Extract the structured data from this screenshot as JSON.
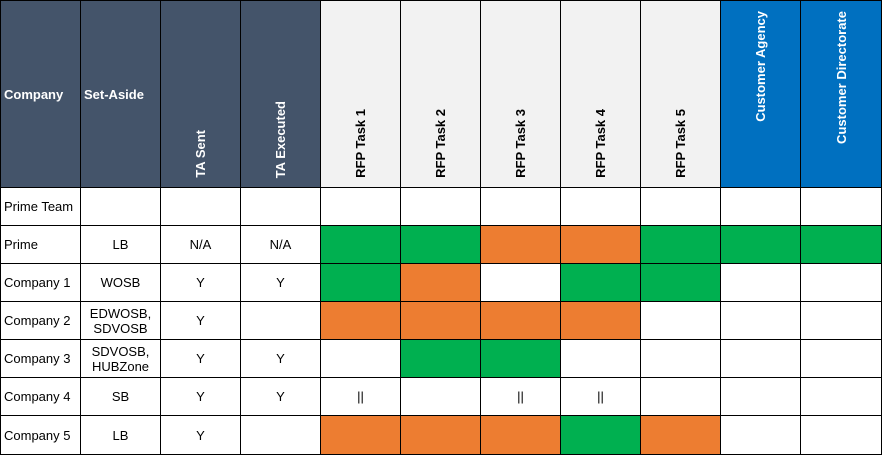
{
  "columns": {
    "company": "Company",
    "set_aside": "Set-Aside",
    "ta_sent": "TA Sent",
    "ta_executed": "TA Executed",
    "rfp_task_1": "RFP Task 1",
    "rfp_task_2": "RFP Task 2",
    "rfp_task_3": "RFP Task 3",
    "rfp_task_4": "RFP Task 4",
    "rfp_task_5": "RFP Task 5",
    "customer_agency": "Customer Agency",
    "customer_directorate": "Customer Directorate"
  },
  "rows": [
    {
      "company": "Prime Team",
      "set_aside": "",
      "ta_sent": "",
      "ta_executed": "",
      "cells": [
        "white",
        "white",
        "white",
        "white",
        "white",
        "white",
        "white"
      ],
      "marks": [
        "",
        "",
        "",
        "",
        "",
        "",
        ""
      ]
    },
    {
      "company": "Prime",
      "set_aside": "LB",
      "ta_sent": "N/A",
      "ta_executed": "N/A",
      "cells": [
        "green",
        "green",
        "orange",
        "orange",
        "green",
        "green",
        "green"
      ],
      "marks": [
        "",
        "",
        "",
        "",
        "",
        "",
        ""
      ]
    },
    {
      "company": "Company 1",
      "set_aside": "WOSB",
      "ta_sent": "Y",
      "ta_executed": "Y",
      "cells": [
        "green",
        "orange",
        "white",
        "green",
        "green",
        "white",
        "white"
      ],
      "marks": [
        "",
        "",
        "",
        "",
        "",
        "",
        ""
      ]
    },
    {
      "company": "Company 2",
      "set_aside": "EDWOSB, SDVOSB",
      "ta_sent": "Y",
      "ta_executed": "",
      "cells": [
        "orange",
        "orange",
        "orange",
        "orange",
        "white",
        "white",
        "white"
      ],
      "marks": [
        "",
        "",
        "",
        "",
        "",
        "",
        ""
      ]
    },
    {
      "company": "Company 3",
      "set_aside": "SDVOSB, HUBZone",
      "ta_sent": "Y",
      "ta_executed": "Y",
      "cells": [
        "white",
        "green",
        "green",
        "white",
        "white",
        "white",
        "white"
      ],
      "marks": [
        "",
        "",
        "",
        "",
        "",
        "",
        ""
      ]
    },
    {
      "company": "Company 4",
      "set_aside": "SB",
      "ta_sent": "Y",
      "ta_executed": "Y",
      "cells": [
        "white",
        "white",
        "white",
        "white",
        "white",
        "white",
        "white"
      ],
      "marks": [
        "||",
        "",
        "||",
        "||",
        "",
        "",
        ""
      ]
    },
    {
      "company": "Company 5",
      "set_aside": "LB",
      "ta_sent": "Y",
      "ta_executed": "",
      "cells": [
        "orange",
        "orange",
        "orange",
        "green",
        "orange",
        "white",
        "white"
      ],
      "marks": [
        "",
        "",
        "",
        "",
        "",
        "",
        ""
      ]
    }
  ],
  "colors": {
    "green": "#00b050",
    "orange": "#ed7d31",
    "white": "#ffffff",
    "header_dark": "#44546a",
    "header_light": "#f2f2f2",
    "header_blue": "#0070c0"
  }
}
